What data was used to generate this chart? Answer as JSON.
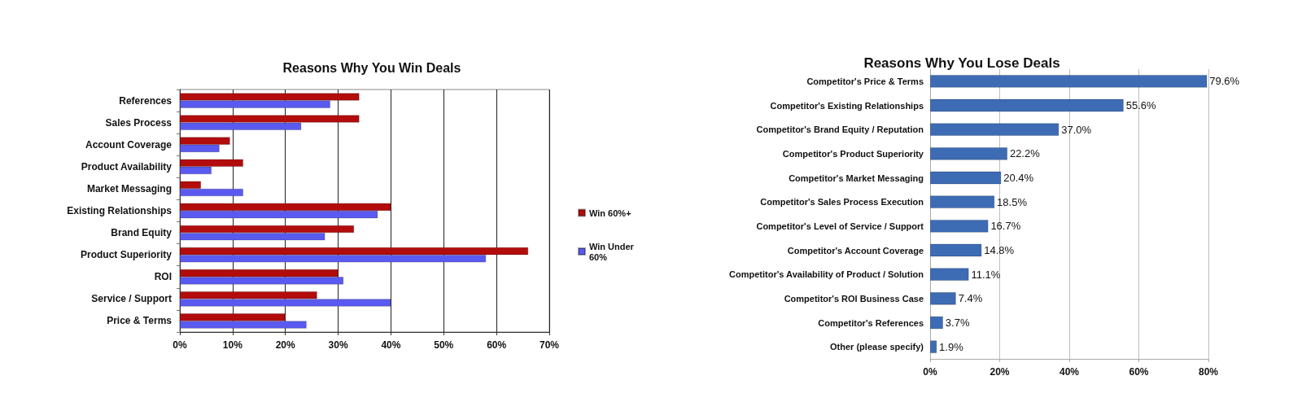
{
  "chart_data": [
    {
      "type": "bar",
      "orientation": "horizontal",
      "title": "Reasons Why You Win Deals",
      "categories": [
        "References",
        "Sales Process",
        "Account Coverage",
        "Product Availability",
        "Market Messaging",
        "Existing Relationships",
        "Brand Equity",
        "Product Superiority",
        "ROI",
        "Service / Support",
        "Price & Terms"
      ],
      "series": [
        {
          "name": "Win 60%+",
          "color": "#b20c0c",
          "values": [
            34,
            34,
            9.5,
            12,
            4,
            40,
            33,
            66,
            30,
            26,
            20
          ]
        },
        {
          "name": "Win Under 60%",
          "color": "#5a5af0",
          "values": [
            28.5,
            23,
            7.5,
            6,
            12,
            37.5,
            27.5,
            58,
            31,
            40,
            24
          ]
        }
      ],
      "xlim": [
        0,
        70
      ],
      "xticks": [
        {
          "value": 0,
          "label": "0%"
        },
        {
          "value": 10,
          "label": "10%"
        },
        {
          "value": 20,
          "label": "20%"
        },
        {
          "value": 30,
          "label": "30%"
        },
        {
          "value": 40,
          "label": "40%"
        },
        {
          "value": 50,
          "label": "50%"
        },
        {
          "value": 60,
          "label": "60%"
        },
        {
          "value": 70,
          "label": "70%"
        }
      ],
      "grid": "x",
      "legend": "right"
    },
    {
      "type": "bar",
      "orientation": "horizontal",
      "title": "Reasons Why You Lose Deals",
      "categories": [
        "Competitor's Price & Terms",
        "Competitor's Existing Relationships",
        "Competitor's Brand Equity / Reputation",
        "Competitor's Product Superiority",
        "Competitor's Market Messaging",
        "Competitor's Sales Process Execution",
        "Competitor's Level of Service / Support",
        "Competitor's Account Coverage",
        "Competitor's Availability of Product / Solution",
        "Competitor's ROI Business Case",
        "Competitor's References",
        "Other (please specify)"
      ],
      "values": [
        79.6,
        55.6,
        37.0,
        22.2,
        20.4,
        18.5,
        16.7,
        14.8,
        11.1,
        7.4,
        3.7,
        1.9
      ],
      "color": "#3d6cb5",
      "value_labels": [
        "79.6%",
        "55.6%",
        "37.0%",
        "22.2%",
        "20.4%",
        "18.5%",
        "16.7%",
        "14.8%",
        "11.1%",
        "7.4%",
        "3.7%",
        "1.9%"
      ],
      "xlim": [
        0,
        80
      ],
      "xticks": [
        {
          "value": 0,
          "label": "0%"
        },
        {
          "value": 20,
          "label": "20%"
        },
        {
          "value": 40,
          "label": "40%"
        },
        {
          "value": 60,
          "label": "60%"
        },
        {
          "value": 80,
          "label": "80%"
        }
      ],
      "grid": "x"
    }
  ]
}
